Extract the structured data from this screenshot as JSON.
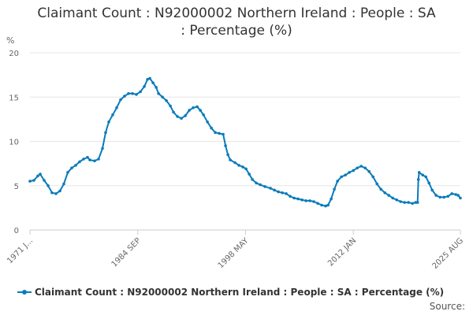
{
  "chart_data": {
    "type": "line",
    "title_line1": "Claimant Count : N92000002 Northern Ireland : People : SA",
    "title_line2": ": Percentage (%)",
    "ylabel": "%",
    "ylim": [
      0,
      20
    ],
    "yticks": [
      "0",
      "5",
      "10",
      "15",
      "20"
    ],
    "x_tick_labels": [
      "1971 J...",
      "1984 SEP",
      "1998 MAY",
      "2012 JAN",
      "2025 AUG"
    ],
    "x_tick_positions": [
      1971.0,
      1984.67,
      1998.33,
      2012.0,
      2025.58
    ],
    "xlim": [
      1971.0,
      2025.58
    ],
    "series": [
      {
        "name": "Claimant Count : N92000002 Northern Ireland : People : SA : Percentage (%)",
        "color": "#0a7bba",
        "points": [
          [
            1971.0,
            5.5
          ],
          [
            1971.5,
            5.6
          ],
          [
            1972.0,
            6.1
          ],
          [
            1972.3,
            6.3
          ],
          [
            1972.8,
            5.6
          ],
          [
            1973.3,
            5.0
          ],
          [
            1973.8,
            4.2
          ],
          [
            1974.3,
            4.1
          ],
          [
            1974.8,
            4.4
          ],
          [
            1975.3,
            5.2
          ],
          [
            1975.8,
            6.5
          ],
          [
            1976.3,
            7.0
          ],
          [
            1976.8,
            7.3
          ],
          [
            1977.3,
            7.7
          ],
          [
            1977.8,
            8.0
          ],
          [
            1978.3,
            8.2
          ],
          [
            1978.6,
            7.9
          ],
          [
            1979.2,
            7.8
          ],
          [
            1979.7,
            8.0
          ],
          [
            1980.2,
            9.2
          ],
          [
            1980.6,
            11.0
          ],
          [
            1981.0,
            12.2
          ],
          [
            1981.5,
            13.0
          ],
          [
            1982.0,
            13.8
          ],
          [
            1982.5,
            14.7
          ],
          [
            1983.0,
            15.1
          ],
          [
            1983.5,
            15.4
          ],
          [
            1984.0,
            15.4
          ],
          [
            1984.5,
            15.3
          ],
          [
            1985.0,
            15.6
          ],
          [
            1985.5,
            16.2
          ],
          [
            1985.9,
            17.0
          ],
          [
            1986.2,
            17.1
          ],
          [
            1986.6,
            16.6
          ],
          [
            1987.0,
            16.1
          ],
          [
            1987.3,
            15.4
          ],
          [
            1987.8,
            15.0
          ],
          [
            1988.3,
            14.6
          ],
          [
            1988.8,
            14.0
          ],
          [
            1989.2,
            13.3
          ],
          [
            1989.7,
            12.8
          ],
          [
            1990.2,
            12.6
          ],
          [
            1990.7,
            12.9
          ],
          [
            1991.2,
            13.5
          ],
          [
            1991.7,
            13.8
          ],
          [
            1992.2,
            13.9
          ],
          [
            1992.6,
            13.5
          ],
          [
            1993.0,
            13.0
          ],
          [
            1993.5,
            12.2
          ],
          [
            1994.0,
            11.5
          ],
          [
            1994.5,
            11.0
          ],
          [
            1995.0,
            10.9
          ],
          [
            1995.5,
            10.8
          ],
          [
            1995.8,
            9.5
          ],
          [
            1996.1,
            8.5
          ],
          [
            1996.4,
            7.9
          ],
          [
            1997.0,
            7.6
          ],
          [
            1997.5,
            7.3
          ],
          [
            1998.0,
            7.1
          ],
          [
            1998.4,
            6.9
          ],
          [
            1998.8,
            6.3
          ],
          [
            1999.2,
            5.7
          ],
          [
            1999.7,
            5.3
          ],
          [
            2000.2,
            5.1
          ],
          [
            2000.8,
            4.9
          ],
          [
            2001.5,
            4.7
          ],
          [
            2002.0,
            4.5
          ],
          [
            2002.5,
            4.3
          ],
          [
            2003.0,
            4.2
          ],
          [
            2003.5,
            4.1
          ],
          [
            2004.0,
            3.8
          ],
          [
            2004.5,
            3.6
          ],
          [
            2005.0,
            3.5
          ],
          [
            2005.5,
            3.4
          ],
          [
            2006.0,
            3.3
          ],
          [
            2006.5,
            3.3
          ],
          [
            2007.0,
            3.2
          ],
          [
            2007.5,
            3.0
          ],
          [
            2008.0,
            2.8
          ],
          [
            2008.5,
            2.7
          ],
          [
            2008.8,
            2.8
          ],
          [
            2009.2,
            3.5
          ],
          [
            2009.6,
            4.6
          ],
          [
            2010.0,
            5.5
          ],
          [
            2010.5,
            6.0
          ],
          [
            2011.0,
            6.2
          ],
          [
            2011.5,
            6.5
          ],
          [
            2012.0,
            6.7
          ],
          [
            2012.5,
            7.0
          ],
          [
            2013.0,
            7.2
          ],
          [
            2013.5,
            7.0
          ],
          [
            2014.0,
            6.6
          ],
          [
            2014.5,
            6.0
          ],
          [
            2015.0,
            5.2
          ],
          [
            2015.5,
            4.6
          ],
          [
            2016.0,
            4.2
          ],
          [
            2016.5,
            3.9
          ],
          [
            2017.0,
            3.6
          ],
          [
            2017.5,
            3.4
          ],
          [
            2018.0,
            3.2
          ],
          [
            2018.5,
            3.1
          ],
          [
            2019.0,
            3.1
          ],
          [
            2019.5,
            3.0
          ],
          [
            2019.9,
            3.1
          ],
          [
            2020.15,
            3.1
          ],
          [
            2020.25,
            5.7
          ],
          [
            2020.35,
            6.5
          ],
          [
            2020.8,
            6.2
          ],
          [
            2021.2,
            6.0
          ],
          [
            2021.6,
            5.3
          ],
          [
            2022.0,
            4.5
          ],
          [
            2022.5,
            3.9
          ],
          [
            2023.0,
            3.7
          ],
          [
            2023.5,
            3.7
          ],
          [
            2024.0,
            3.8
          ],
          [
            2024.5,
            4.1
          ],
          [
            2025.0,
            4.0
          ],
          [
            2025.3,
            3.9
          ],
          [
            2025.58,
            3.6
          ]
        ]
      }
    ],
    "legend_label": "Claimant Count : N92000002 Northern Ireland : People : SA : Percentage (%)",
    "source_label": "Source:"
  }
}
